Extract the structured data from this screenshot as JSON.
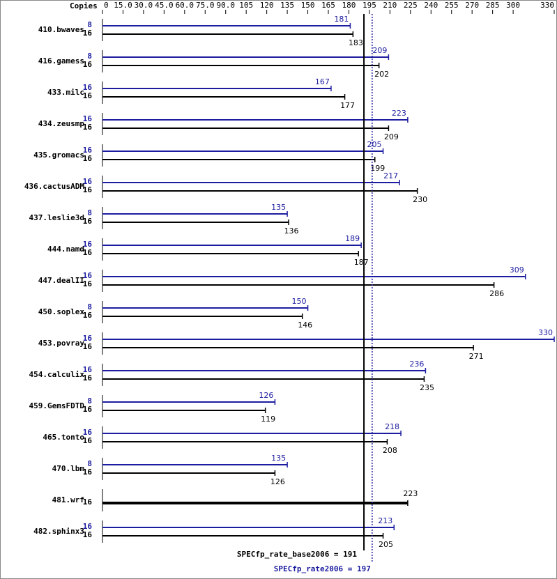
{
  "chart_data": {
    "type": "bar",
    "orientation": "horizontal",
    "copies_header": "Copies",
    "categories": [
      "410.bwaves",
      "416.gamess",
      "433.milc",
      "434.zeusmp",
      "435.gromacs",
      "436.cactusADM",
      "437.leslie3d",
      "444.namd",
      "447.dealII",
      "450.soplex",
      "453.povray",
      "454.calculix",
      "459.GemsFDTD",
      "465.tonto",
      "470.lbm",
      "481.wrf",
      "482.sphinx3"
    ],
    "series": [
      {
        "color": "#1c1ca0",
        "copies": [
          8,
          8,
          16,
          16,
          16,
          16,
          8,
          16,
          16,
          8,
          16,
          16,
          8,
          16,
          8,
          null,
          16
        ],
        "values": [
          181,
          209,
          167,
          223,
          205,
          217,
          135,
          189,
          309,
          150,
          330,
          236,
          126,
          218,
          135,
          null,
          213
        ]
      },
      {
        "color": "#000000",
        "copies": [
          16,
          16,
          16,
          16,
          16,
          16,
          16,
          16,
          16,
          16,
          16,
          16,
          16,
          16,
          16,
          16,
          16
        ],
        "values": [
          183,
          202,
          177,
          209,
          199,
          230,
          136,
          187,
          286,
          146,
          271,
          235,
          119,
          208,
          126,
          223,
          205
        ]
      }
    ],
    "xlim": [
      0,
      330
    ],
    "xticks": [
      0,
      {
        "value": 15,
        "label": "15.0"
      },
      {
        "value": 30,
        "label": "30.0"
      },
      {
        "value": 45,
        "label": "45.0"
      },
      {
        "value": 60,
        "label": "60.0"
      },
      {
        "value": 75,
        "label": "75.0"
      },
      {
        "value": 90,
        "label": "90.0"
      },
      105,
      120,
      135,
      150,
      165,
      180,
      195,
      210,
      225,
      240,
      255,
      270,
      285,
      300,
      330
    ],
    "reference_lines": [
      {
        "label": "SPECfp_rate_base2006 = 191",
        "value": 191,
        "color": "#000000",
        "style": "solid"
      },
      {
        "label": "SPECfp_rate2006 = 197",
        "value": 197,
        "color": "#1c1ca0",
        "style": "dotted"
      }
    ]
  }
}
